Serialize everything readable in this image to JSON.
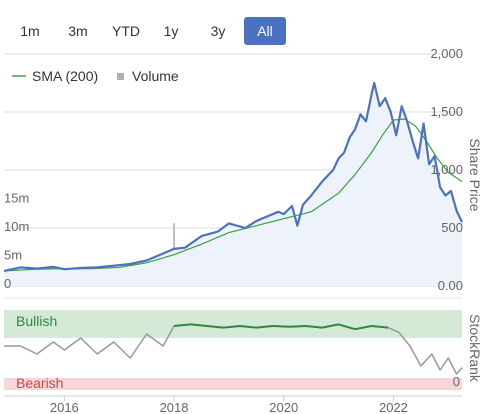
{
  "range_selector": {
    "buttons": [
      {
        "label": "1m",
        "active": false
      },
      {
        "label": "3m",
        "active": false
      },
      {
        "label": "YTD",
        "active": false
      },
      {
        "label": "1y",
        "active": false
      },
      {
        "label": "3y",
        "active": false
      },
      {
        "label": "All",
        "active": true
      }
    ]
  },
  "legend": {
    "sma_label": "SMA (200)",
    "volume_label": "Volume"
  },
  "colors": {
    "price": "#4a72c0",
    "sma": "#3aa040",
    "volume": "#b0b0b0",
    "bullish_band": "#d4ead6",
    "bearish_band": "#f6d6d8",
    "rank": "#999999",
    "rank_bull": "#2c8a3e",
    "rank_bear": "#d04848",
    "active_button": "#4a72c0"
  },
  "chart_data": [
    {
      "type": "line",
      "price_axis": {
        "title": "Share Price",
        "ticks": [
          "2,000",
          "1,500",
          "1,000",
          "500",
          "0.00"
        ],
        "tick_values": [
          2000,
          1500,
          1000,
          500,
          0
        ],
        "ylim": [
          0,
          2000
        ]
      },
      "volume_axis": {
        "ticks": [
          "15m",
          "10m",
          "5m",
          "0"
        ],
        "tick_values": [
          15,
          10,
          5,
          0
        ],
        "ylim": [
          0,
          20
        ]
      },
      "x_axis": {
        "ticks": [
          "2016",
          "2018",
          "2020",
          "2022"
        ],
        "tick_values": [
          2016,
          2018,
          2020,
          2022
        ],
        "xlim": [
          2014.9,
          2023.25
        ]
      },
      "series": [
        {
          "name": "Share Price",
          "x": [
            2014.9,
            2015.2,
            2015.5,
            2015.8,
            2016.0,
            2016.3,
            2016.6,
            2016.9,
            2017.2,
            2017.5,
            2017.8,
            2018.0,
            2018.2,
            2018.5,
            2018.8,
            2019.0,
            2019.3,
            2019.5,
            2019.7,
            2019.9,
            2020.0,
            2020.15,
            2020.25,
            2020.35,
            2020.5,
            2020.7,
            2020.9,
            2021.0,
            2021.1,
            2021.2,
            2021.3,
            2021.4,
            2021.5,
            2021.6,
            2021.65,
            2021.75,
            2021.85,
            2021.95,
            2022.05,
            2022.15,
            2022.25,
            2022.35,
            2022.45,
            2022.55,
            2022.65,
            2022.75,
            2022.85,
            2022.95,
            2023.05,
            2023.15,
            2023.25
          ],
          "values": [
            130,
            160,
            150,
            165,
            145,
            155,
            160,
            175,
            190,
            220,
            280,
            320,
            330,
            430,
            470,
            540,
            500,
            560,
            600,
            640,
            620,
            690,
            520,
            700,
            780,
            900,
            1000,
            1100,
            1150,
            1280,
            1350,
            1480,
            1420,
            1650,
            1750,
            1550,
            1620,
            1500,
            1300,
            1550,
            1420,
            1250,
            1100,
            1400,
            1050,
            1120,
            850,
            780,
            820,
            650,
            550
          ]
        },
        {
          "name": "SMA (200)",
          "x": [
            2014.9,
            2015.5,
            2016.0,
            2016.5,
            2017.0,
            2017.5,
            2018.0,
            2018.5,
            2019.0,
            2019.5,
            2020.0,
            2020.5,
            2021.0,
            2021.3,
            2021.6,
            2021.8,
            2022.0,
            2022.2,
            2022.4,
            2022.6,
            2022.8,
            2023.0,
            2023.25
          ],
          "values": [
            130,
            145,
            150,
            150,
            160,
            200,
            270,
            360,
            460,
            520,
            580,
            640,
            800,
            960,
            1150,
            1300,
            1430,
            1440,
            1380,
            1250,
            1100,
            980,
            900
          ]
        },
        {
          "name": "Volume",
          "x": [
            2015.2,
            2016.0,
            2016.9,
            2017.5,
            2017.9,
            2018.0,
            2018.3,
            2018.7,
            2019.0,
            2019.5,
            2020.0,
            2020.1,
            2020.5,
            2021.0,
            2021.5,
            2021.8,
            2022.2,
            2022.6,
            2023.0
          ],
          "values": [
            1.2,
            1.0,
            1.5,
            1.2,
            2.0,
            11.0,
            2.5,
            1.8,
            1.5,
            1.2,
            1.8,
            3.6,
            1.5,
            1.2,
            1.0,
            1.4,
            1.2,
            1.0,
            1.1
          ]
        }
      ]
    },
    {
      "type": "line",
      "y_axis": {
        "title": "StockRank",
        "ticks": [
          "0"
        ],
        "tick_values": [
          0
        ],
        "ylim": [
          0,
          100
        ]
      },
      "bands": {
        "bullish_label": "Bullish",
        "bearish_label": "Bearish",
        "bullish_min": 80,
        "bearish_max": 20
      },
      "series": [
        {
          "name": "StockRank",
          "x": [
            2014.9,
            2015.2,
            2015.5,
            2015.8,
            2016.0,
            2016.3,
            2016.6,
            2016.9,
            2017.2,
            2017.5,
            2017.8,
            2018.0,
            2018.3,
            2018.6,
            2018.9,
            2019.2,
            2019.5,
            2019.8,
            2020.1,
            2020.4,
            2020.7,
            2021.0,
            2021.3,
            2021.6,
            2021.9,
            2022.1,
            2022.3,
            2022.5,
            2022.7,
            2022.85,
            2023.0,
            2023.15,
            2023.25
          ],
          "values": [
            55,
            55,
            45,
            60,
            50,
            65,
            45,
            60,
            40,
            70,
            55,
            80,
            82,
            80,
            78,
            80,
            78,
            80,
            79,
            80,
            78,
            82,
            76,
            80,
            78,
            72,
            55,
            30,
            45,
            25,
            40,
            20,
            28
          ]
        }
      ]
    }
  ]
}
